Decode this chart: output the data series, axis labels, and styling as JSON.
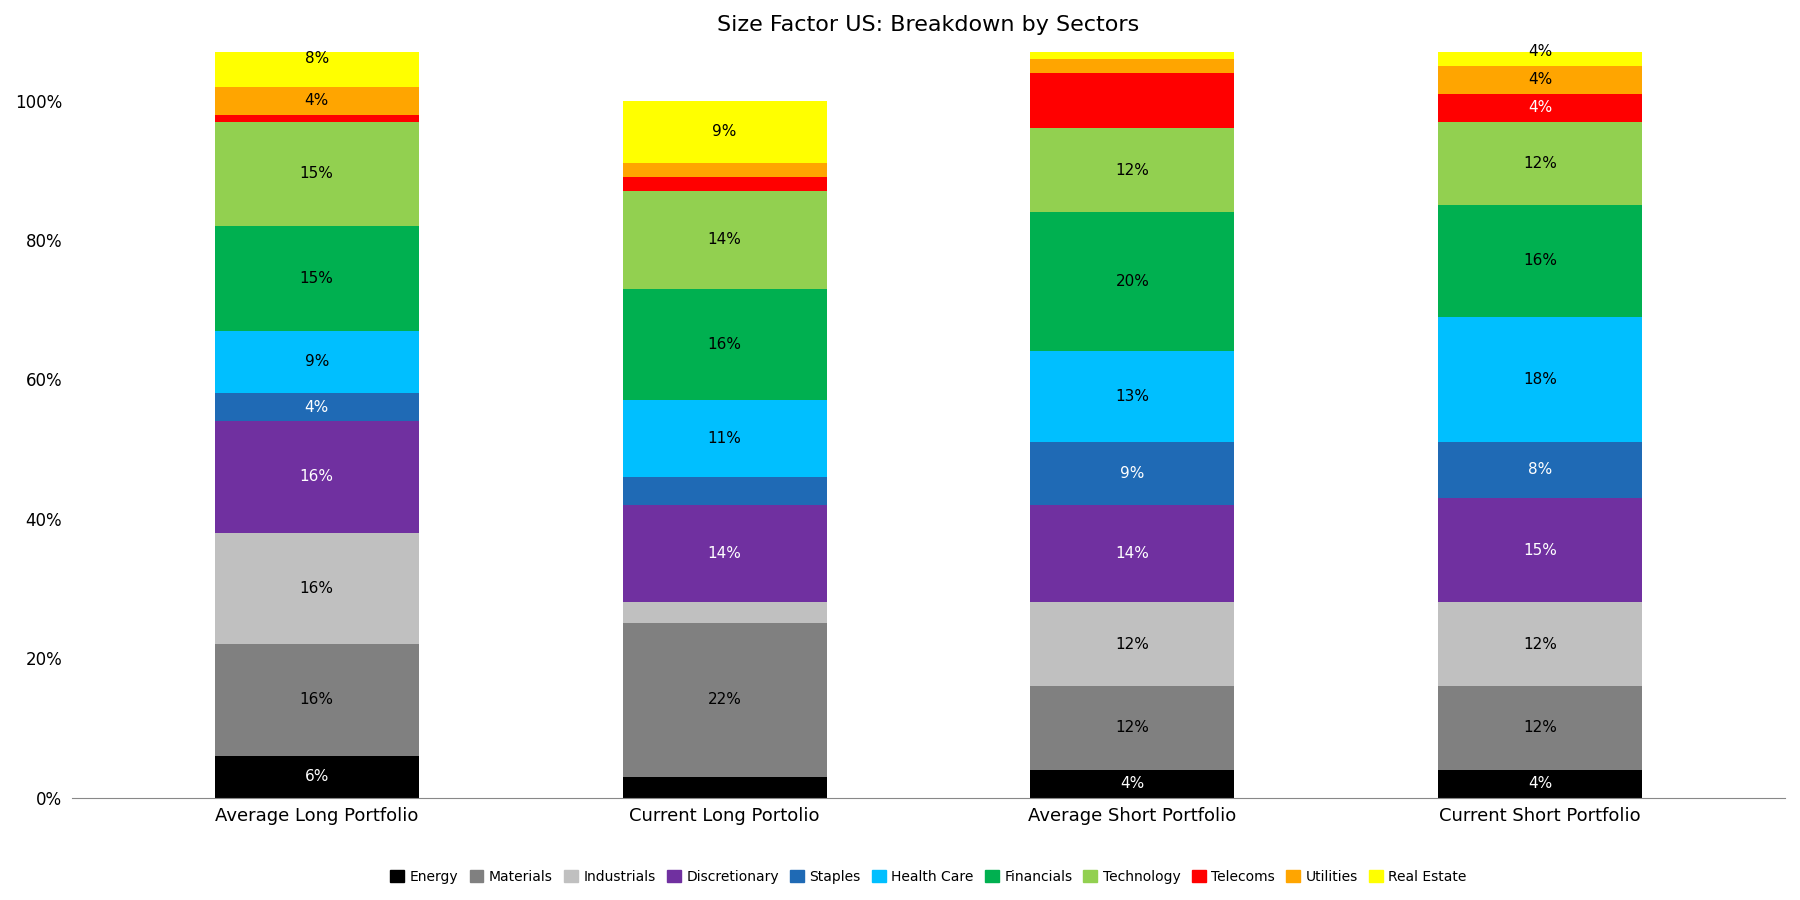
{
  "title": "Size Factor US: Breakdown by Sectors",
  "categories": [
    "Average Long Portfolio",
    "Current Long Portolio",
    "Average Short Portfolio",
    "Current Short Portfolio"
  ],
  "sectors": [
    "Energy",
    "Materials",
    "Industrials",
    "Discretionary",
    "Staples",
    "Health Care",
    "Financials",
    "Technology",
    "Telecoms",
    "Utilities",
    "Real Estate"
  ],
  "colors": [
    "#000000",
    "#808080",
    "#c0c0c0",
    "#7030a0",
    "#1f6ab5",
    "#00bfff",
    "#00b050",
    "#92d050",
    "#ff0000",
    "#ffa500",
    "#ffff00"
  ],
  "values": {
    "Average Long Portfolio": [
      6,
      16,
      16,
      16,
      4,
      9,
      15,
      15,
      1,
      4,
      8
    ],
    "Current Long Portolio": [
      3,
      22,
      3,
      14,
      4,
      11,
      16,
      14,
      2,
      2,
      9
    ],
    "Average Short Portfolio": [
      4,
      12,
      12,
      14,
      9,
      13,
      20,
      12,
      8,
      2,
      4
    ],
    "Current Short Portfolio": [
      4,
      12,
      12,
      15,
      8,
      18,
      16,
      12,
      4,
      4,
      4
    ]
  },
  "labels": {
    "Average Long Portfolio": [
      "6%",
      "16%",
      "16%",
      "16%",
      "4%",
      "9%",
      "15%",
      "15%",
      "",
      "4%",
      "8%"
    ],
    "Current Long Portolio": [
      "",
      "22%",
      "",
      "14%",
      "",
      "11%",
      "16%",
      "14%",
      "",
      "",
      "9%"
    ],
    "Average Short Portfolio": [
      "4%",
      "12%",
      "12%",
      "14%",
      "9%",
      "13%",
      "20%",
      "12%",
      "",
      "",
      ""
    ],
    "Current Short Portfolio": [
      "4%",
      "12%",
      "12%",
      "15%",
      "8%",
      "18%",
      "16%",
      "12%",
      "4%",
      "4%",
      "4%"
    ]
  },
  "text_colors": {
    "Energy": "white",
    "Materials": "black",
    "Industrials": "black",
    "Discretionary": "white",
    "Staples": "white",
    "Health Care": "black",
    "Financials": "black",
    "Technology": "black",
    "Telecoms": "white",
    "Utilities": "black",
    "Real Estate": "black"
  },
  "background_color": "#ffffff",
  "title_fontsize": 16,
  "label_fontsize": 11,
  "legend_fontsize": 10,
  "bar_width": 0.5
}
